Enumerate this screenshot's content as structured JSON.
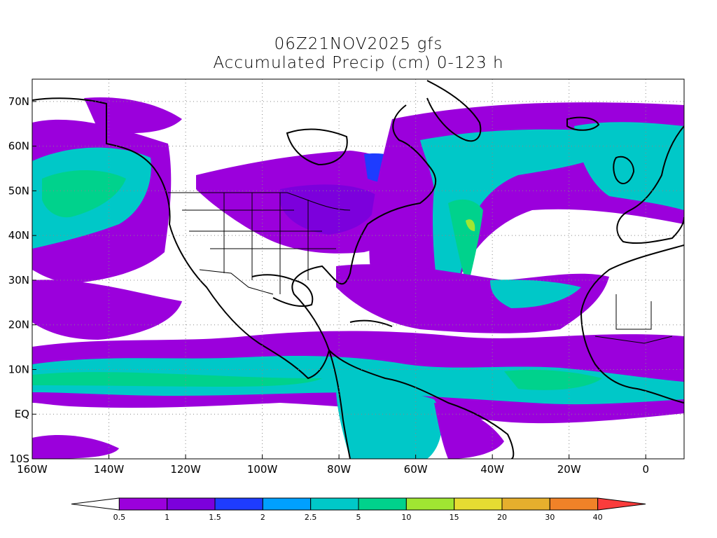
{
  "title": "06Z21NOV2025 gfs",
  "subtitle": "Accumulated Precip (cm) 0-123 h",
  "map": {
    "lon_range": [
      -160,
      10
    ],
    "lat_range": [
      -10,
      75
    ],
    "lat_ticks": [
      {
        "lat": 70,
        "label": "70N"
      },
      {
        "lat": 60,
        "label": "60N"
      },
      {
        "lat": 50,
        "label": "50N"
      },
      {
        "lat": 40,
        "label": "40N"
      },
      {
        "lat": 30,
        "label": "30N"
      },
      {
        "lat": 20,
        "label": "20N"
      },
      {
        "lat": 10,
        "label": "10N"
      },
      {
        "lat": 0,
        "label": "EQ"
      },
      {
        "lat": -10,
        "label": "10S"
      }
    ],
    "lon_ticks": [
      {
        "lon": -160,
        "label": "160W"
      },
      {
        "lon": -140,
        "label": "140W"
      },
      {
        "lon": -120,
        "label": "120W"
      },
      {
        "lon": -100,
        "label": "100W"
      },
      {
        "lon": -80,
        "label": "80W"
      },
      {
        "lon": -60,
        "label": "60W"
      },
      {
        "lon": -40,
        "label": "40W"
      },
      {
        "lon": -20,
        "label": "20W"
      },
      {
        "lon": 0,
        "label": "0"
      }
    ],
    "grid_lines": true
  },
  "colorbar": {
    "colors": [
      "#ffffff",
      "#9b00dc",
      "#7c00dc",
      "#1e3cff",
      "#00a0ff",
      "#00c8c8",
      "#00d28c",
      "#a0e632",
      "#e6dc32",
      "#e6af2d",
      "#f08228",
      "#fa3c3c"
    ],
    "labels": [
      "0.5",
      "1",
      "1.5",
      "2",
      "2.5",
      "5",
      "10",
      "15",
      "20",
      "30",
      "40"
    ]
  },
  "colors": {
    "purple": "#9b00dc",
    "violet": "#7c00dc",
    "blue": "#1e3cff",
    "cyan": "#00c8c8",
    "teal": "#00d28c",
    "lime": "#a0e632",
    "land_outline": "#000000"
  }
}
